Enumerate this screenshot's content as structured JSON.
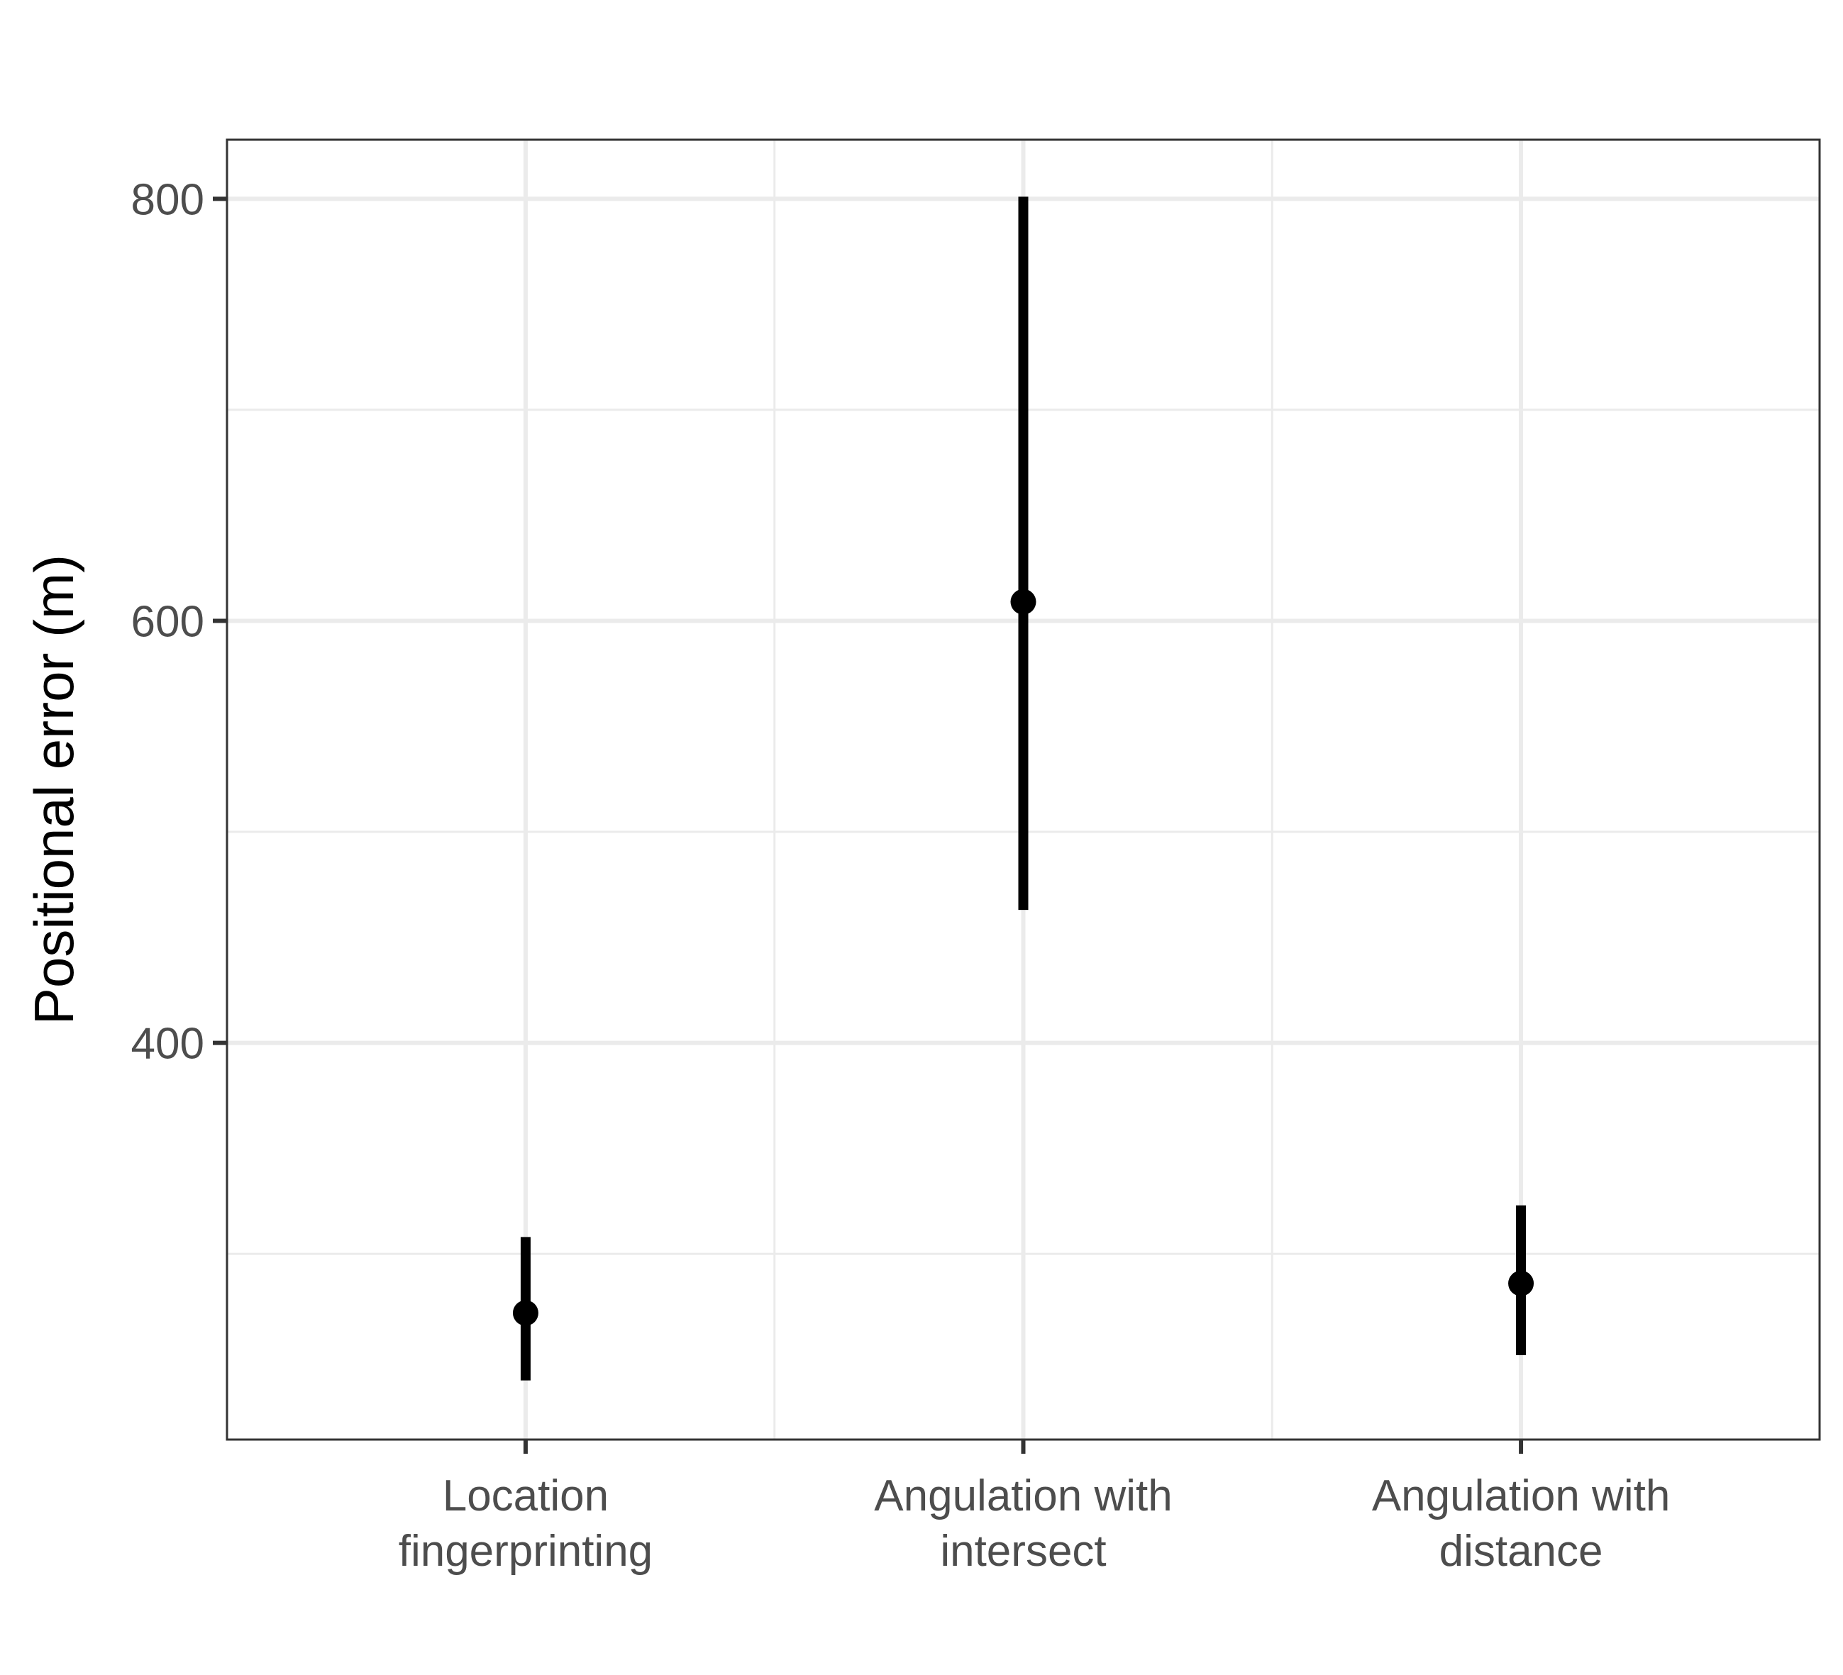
{
  "chart_data": {
    "type": "pointrange",
    "title": "",
    "xlabel": "",
    "ylabel": "Positional error (m)",
    "ylim": [
      212,
      828
    ],
    "yticks": [
      400,
      600,
      800
    ],
    "grid": true,
    "categories": [
      "Location fingerprinting",
      "Angulation with intersect",
      "Angulation with distance"
    ],
    "category_labels": [
      [
        "Location",
        "fingerprinting"
      ],
      [
        "Angulation with",
        "intersect"
      ],
      [
        "Angulation with",
        "distance"
      ]
    ],
    "series": [
      {
        "estimate": [
          272,
          609,
          286
        ],
        "lower": [
          240,
          463,
          252
        ],
        "upper": [
          308,
          801,
          323
        ]
      }
    ],
    "colors": {
      "marks": "#000000",
      "grid": "#ebebeb",
      "panel_border": "#333333",
      "tick_label": "#4d4d4d",
      "background": "#ffffff"
    }
  }
}
